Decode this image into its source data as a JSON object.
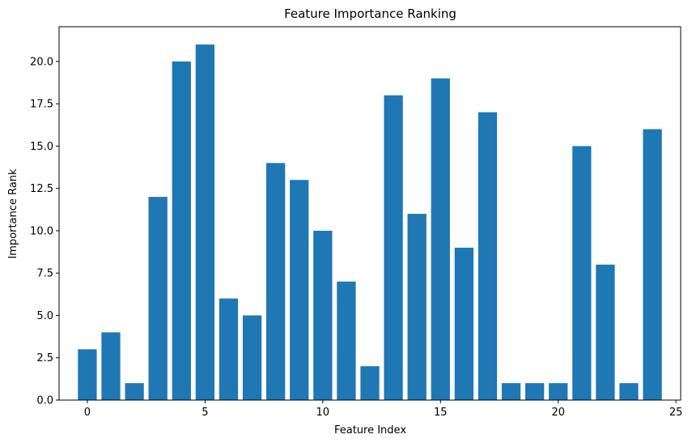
{
  "chart_data": {
    "type": "bar",
    "title": "Feature Importance Ranking",
    "xlabel": "Feature Index",
    "ylabel": "Importance Rank",
    "categories": [
      0,
      1,
      2,
      3,
      4,
      5,
      6,
      7,
      8,
      9,
      10,
      11,
      12,
      13,
      14,
      15,
      16,
      17,
      18,
      19,
      20,
      21,
      22,
      23,
      24
    ],
    "values": [
      3,
      4,
      1,
      12,
      20,
      21,
      6,
      5,
      14,
      13,
      10,
      7,
      2,
      18,
      11,
      19,
      9,
      17,
      1,
      1,
      1,
      15,
      8,
      1,
      16
    ],
    "xlim": [
      -1.2,
      25.2
    ],
    "ylim": [
      0,
      22.05
    ],
    "xticks": [
      "0",
      "5",
      "10",
      "15",
      "20",
      "25"
    ],
    "yticks": [
      "0.0",
      "2.5",
      "5.0",
      "7.5",
      "10.0",
      "12.5",
      "15.0",
      "17.5",
      "20.0"
    ],
    "bar_color": "#1f77b4",
    "grid": false,
    "legend": "none"
  }
}
